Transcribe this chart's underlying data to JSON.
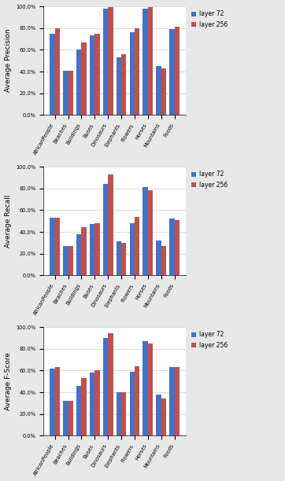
{
  "categories": [
    "AfricanPeople",
    "Beaches",
    "Buildings",
    "Buses",
    "Dinosaurs",
    "Elephants",
    "Flowers",
    "Horses",
    "Mountains",
    "Foods"
  ],
  "precision": {
    "layer72": [
      75,
      41,
      60,
      73,
      98,
      53,
      76,
      98,
      45,
      79
    ],
    "layer256": [
      80,
      41,
      67,
      75,
      99,
      56,
      80,
      99,
      43,
      81
    ]
  },
  "recall": {
    "layer72": [
      53,
      27,
      38,
      47,
      84,
      31,
      48,
      81,
      32,
      52
    ],
    "layer256": [
      53,
      27,
      44,
      48,
      93,
      30,
      54,
      78,
      27,
      51
    ]
  },
  "fscore": {
    "layer72": [
      62,
      32,
      46,
      58,
      90,
      40,
      59,
      87,
      38,
      63
    ],
    "layer256": [
      63,
      32,
      53,
      60,
      94,
      40,
      64,
      85,
      34,
      63
    ]
  },
  "ylabels": [
    "Average Precision",
    "Average Recall",
    "Average F-Score"
  ],
  "color_72": "#4472C4",
  "color_256": "#C0504D",
  "legend_label_72": "layer 72",
  "legend_label_256": "layer 256",
  "ylim": [
    0,
    100
  ],
  "ytick_labels": [
    "0.0%",
    "20.0%",
    "40.0%",
    "60.0%",
    "80.0%",
    "100.0%"
  ],
  "ytick_vals": [
    0,
    20,
    40,
    60,
    80,
    100
  ],
  "bar_width": 0.38,
  "tick_fontsize": 4.8,
  "legend_fontsize": 5.5,
  "ylabel_fontsize": 6.5,
  "bg_color": "#E8E8E8"
}
